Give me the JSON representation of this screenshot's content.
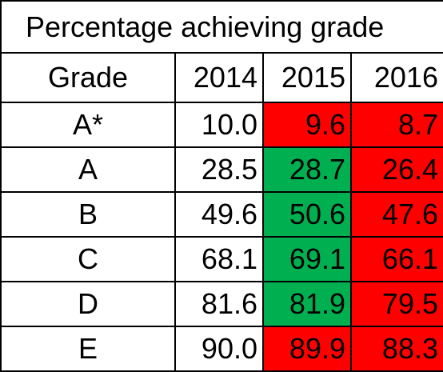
{
  "title": "Percentage achieving grade",
  "headers": {
    "grade": "Grade",
    "years": [
      "2014",
      "2015",
      "2016"
    ]
  },
  "colors": {
    "increase": "#00b050",
    "decrease": "#ff0000",
    "neutral": "#ffffff",
    "border": "#000000"
  },
  "rows": [
    {
      "grade": "A*",
      "values": [
        "10.0",
        "9.6",
        "8.7"
      ],
      "status": [
        "neutral",
        "decrease",
        "decrease"
      ]
    },
    {
      "grade": "A",
      "values": [
        "28.5",
        "28.7",
        "26.4"
      ],
      "status": [
        "neutral",
        "increase",
        "decrease"
      ]
    },
    {
      "grade": "B",
      "values": [
        "49.6",
        "50.6",
        "47.6"
      ],
      "status": [
        "neutral",
        "increase",
        "decrease"
      ]
    },
    {
      "grade": "C",
      "values": [
        "68.1",
        "69.1",
        "66.1"
      ],
      "status": [
        "neutral",
        "increase",
        "decrease"
      ]
    },
    {
      "grade": "D",
      "values": [
        "81.6",
        "81.9",
        "79.5"
      ],
      "status": [
        "neutral",
        "increase",
        "decrease"
      ]
    },
    {
      "grade": "E",
      "values": [
        "90.0",
        "89.9",
        "88.3"
      ],
      "status": [
        "neutral",
        "decrease",
        "decrease"
      ]
    }
  ]
}
